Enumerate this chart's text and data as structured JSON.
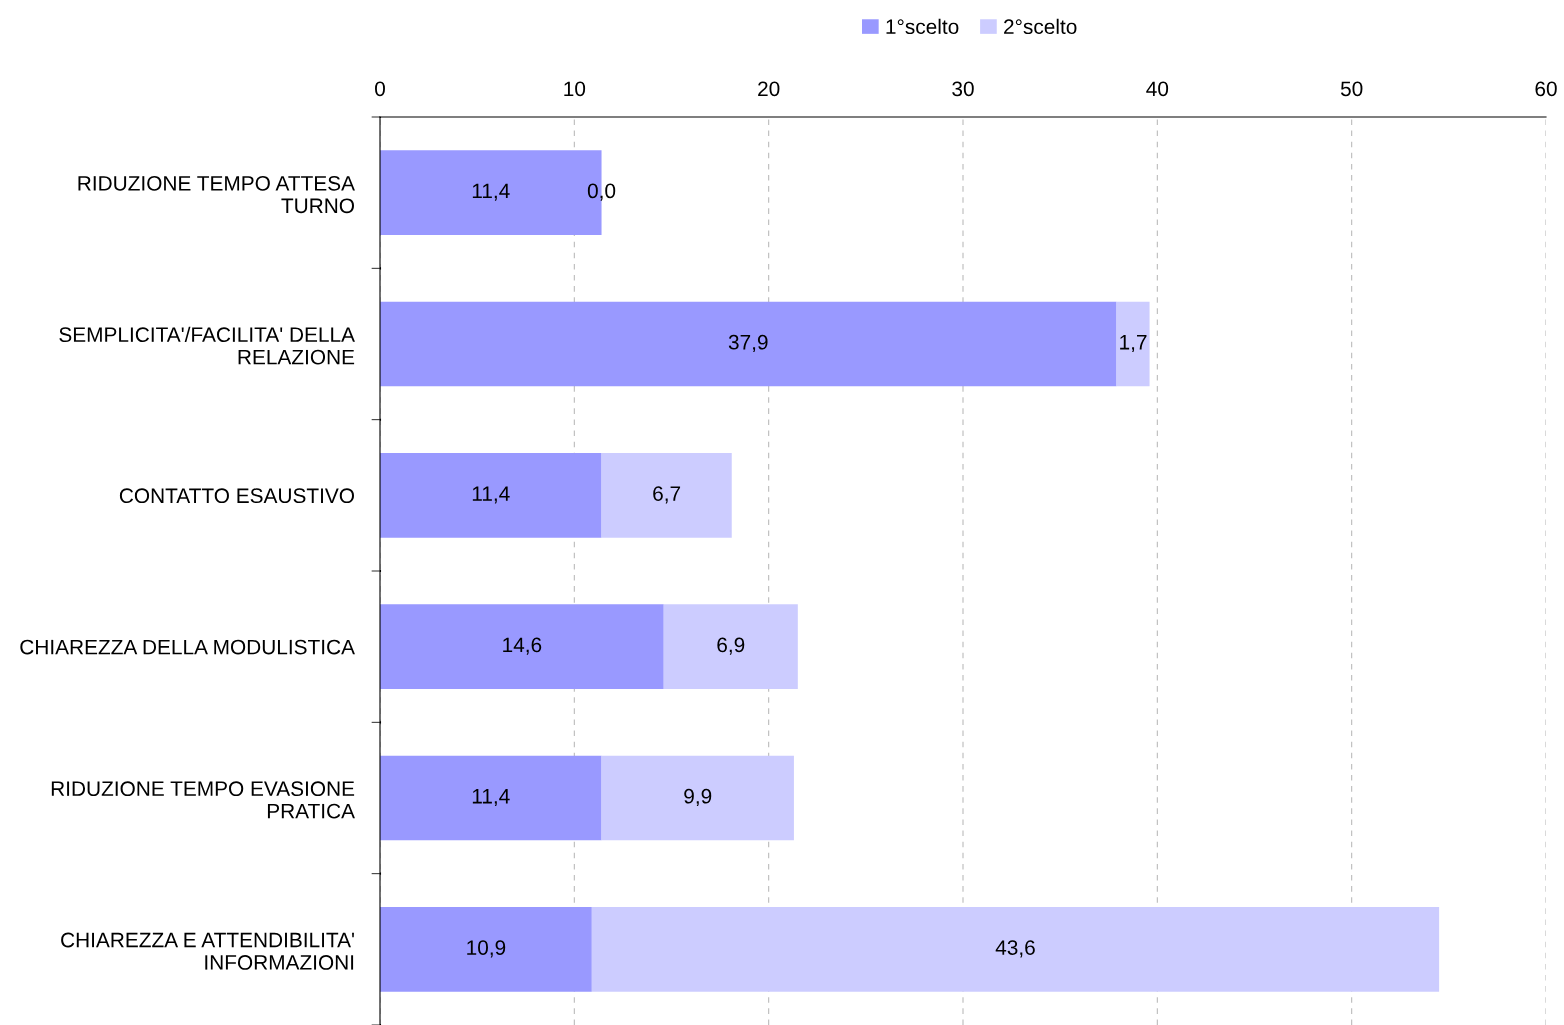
{
  "chart_data": {
    "type": "bar",
    "orientation": "horizontal",
    "stacked": true,
    "categories": [
      "RIDUZIONE TEMPO ATTESA TURNO",
      "SEMPLICITA'/FACILITA' DELLA RELAZIONE",
      "CONTATTO ESAUSTIVO",
      "CHIAREZZA DELLA MODULISTICA",
      "RIDUZIONE TEMPO EVASIONE PRATICA",
      "CHIAREZZA E ATTENDIBILITA' INFORMAZIONI"
    ],
    "series": [
      {
        "name": "1°scelto",
        "color": "#9999ff",
        "values": [
          11.4,
          37.9,
          11.4,
          14.6,
          11.4,
          10.9
        ],
        "value_labels": [
          "11,4",
          "37,9",
          "11,4",
          "14,6",
          "11,4",
          "10,9"
        ]
      },
      {
        "name": "2°scelto",
        "color": "#ccccff",
        "values": [
          0.0,
          1.7,
          6.7,
          6.9,
          9.9,
          43.6
        ],
        "value_labels": [
          "0,0",
          "1,7",
          "6,7",
          "6,9",
          "9,9",
          "43,6"
        ]
      }
    ],
    "xlim": [
      0,
      60
    ],
    "xticks": [
      0,
      10,
      20,
      30,
      40,
      50,
      60
    ],
    "grid": "x",
    "legend": "top"
  }
}
